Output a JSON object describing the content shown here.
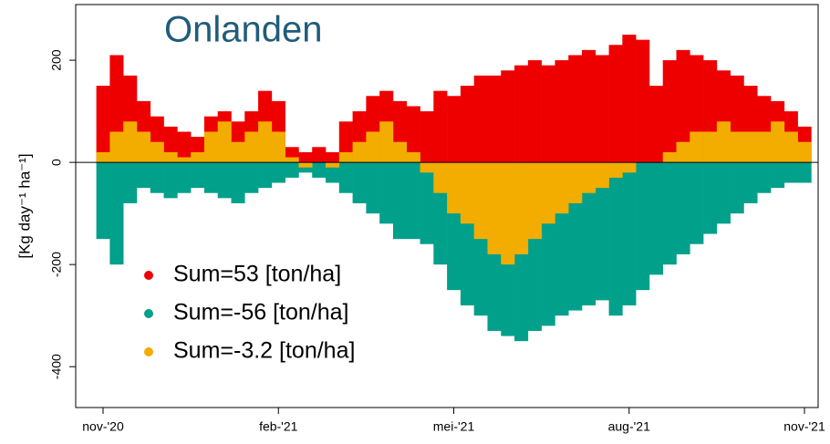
{
  "chart_data": {
    "type": "bar",
    "title": "Onlanden",
    "y_label": "[Kg day⁻¹ ha⁻¹]",
    "categories": [
      "nov-'20",
      null,
      null,
      null,
      null,
      null,
      null,
      null,
      null,
      null,
      null,
      null,
      null,
      "feb-'21",
      null,
      null,
      null,
      null,
      null,
      null,
      null,
      null,
      null,
      null,
      null,
      null,
      "mei-'21",
      null,
      null,
      null,
      null,
      null,
      null,
      null,
      null,
      null,
      null,
      null,
      null,
      "aug-'21",
      null,
      null,
      null,
      null,
      null,
      null,
      null,
      null,
      null,
      null,
      null,
      null,
      "nov-'21"
    ],
    "series": [
      {
        "name": "Sum=53 [ton/ha]",
        "color": "#ee0000",
        "values": [
          150,
          210,
          170,
          120,
          90,
          70,
          60,
          50,
          90,
          100,
          80,
          100,
          140,
          120,
          30,
          20,
          30,
          20,
          80,
          100,
          130,
          140,
          120,
          110,
          100,
          140,
          130,
          150,
          170,
          170,
          180,
          190,
          200,
          190,
          200,
          210,
          220,
          210,
          230,
          250,
          240,
          150,
          200,
          220,
          210,
          200,
          180,
          170,
          150,
          130,
          120,
          100,
          70
        ]
      },
      {
        "name": "Sum=-56 [ton/ha]",
        "color": "#00a08a",
        "values": [
          -150,
          -200,
          -80,
          -50,
          -60,
          -70,
          -60,
          -50,
          -60,
          -70,
          -80,
          -60,
          -50,
          -40,
          -30,
          -20,
          -30,
          -40,
          -60,
          -80,
          -100,
          -120,
          -150,
          -150,
          -160,
          -200,
          -250,
          -280,
          -300,
          -330,
          -340,
          -350,
          -330,
          -320,
          -300,
          -290,
          -280,
          -270,
          -300,
          -280,
          -250,
          -220,
          -200,
          -180,
          -160,
          -140,
          -120,
          -100,
          -80,
          -60,
          -50,
          -40,
          -40
        ]
      },
      {
        "name": "Sum=-3.2 [ton/ha]",
        "color": "#f2ad00",
        "values": [
          20,
          60,
          80,
          60,
          40,
          20,
          10,
          20,
          60,
          80,
          40,
          60,
          80,
          60,
          10,
          -10,
          0,
          -10,
          20,
          40,
          60,
          80,
          40,
          20,
          -20,
          -60,
          -100,
          -120,
          -150,
          -180,
          -200,
          -180,
          -150,
          -120,
          -100,
          -80,
          -60,
          -50,
          -30,
          -20,
          0,
          0,
          20,
          40,
          60,
          60,
          80,
          60,
          60,
          60,
          80,
          60,
          40
        ]
      }
    ],
    "ylim": [
      -480,
      309
    ],
    "yticks": [
      -400,
      -200,
      0,
      200
    ]
  }
}
